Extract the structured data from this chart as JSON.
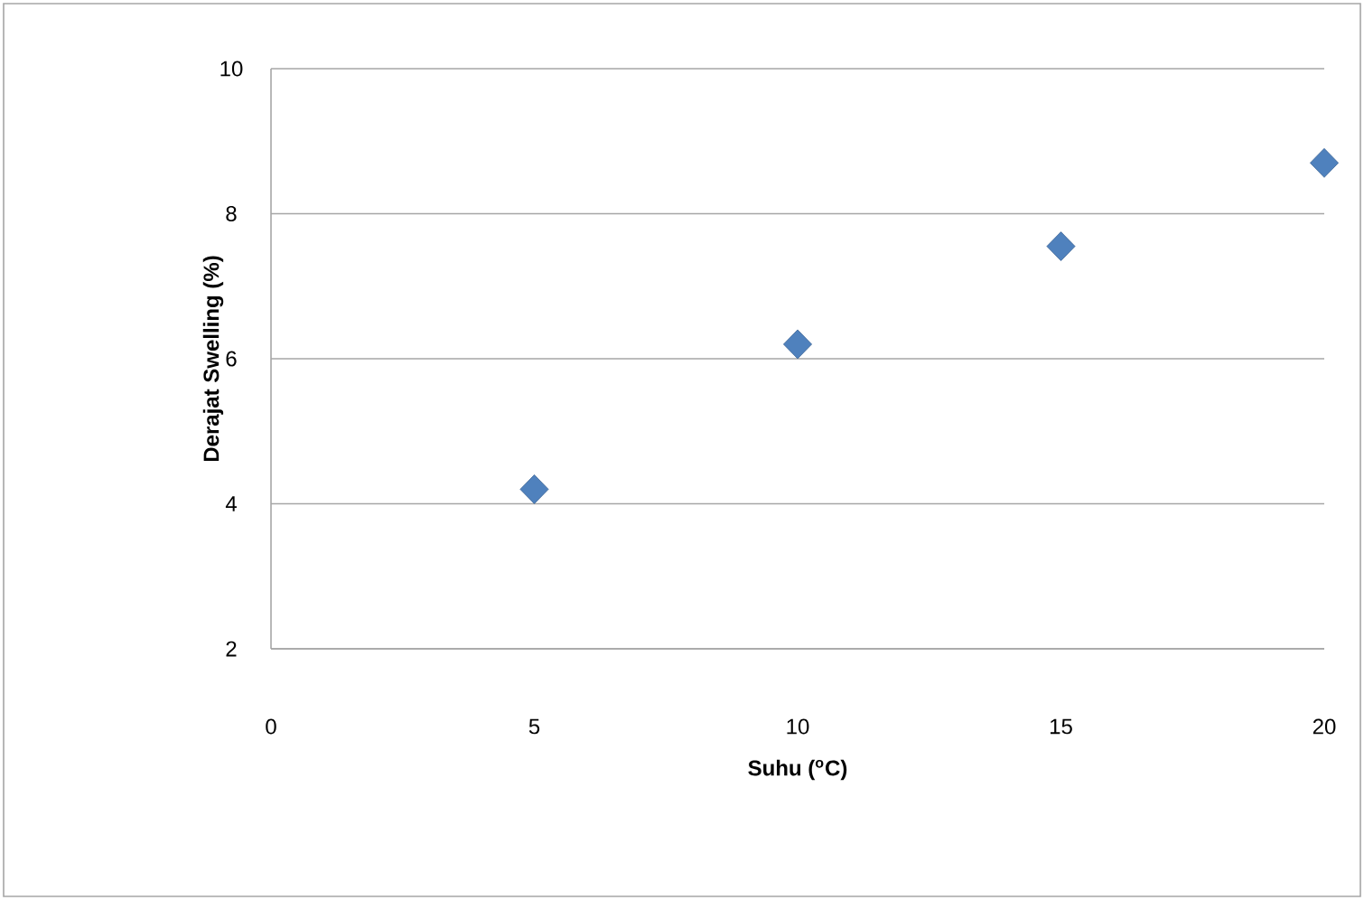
{
  "chart_data": {
    "type": "scatter",
    "xlabel": "Suhu ($^{o}$C)",
    "ylabel": "Derajat Swelling (%)",
    "x": [
      5,
      10,
      15,
      20
    ],
    "values": [
      4.2,
      6.2,
      7.55,
      8.7
    ],
    "color": "#4f81bd",
    "marker": "diamond",
    "grid": "y",
    "xlim": [
      0,
      20
    ],
    "ylim": [
      2,
      10
    ],
    "xticks": [
      0,
      5,
      10,
      15,
      20
    ],
    "yticks": [
      2,
      4,
      6,
      8,
      10
    ]
  }
}
